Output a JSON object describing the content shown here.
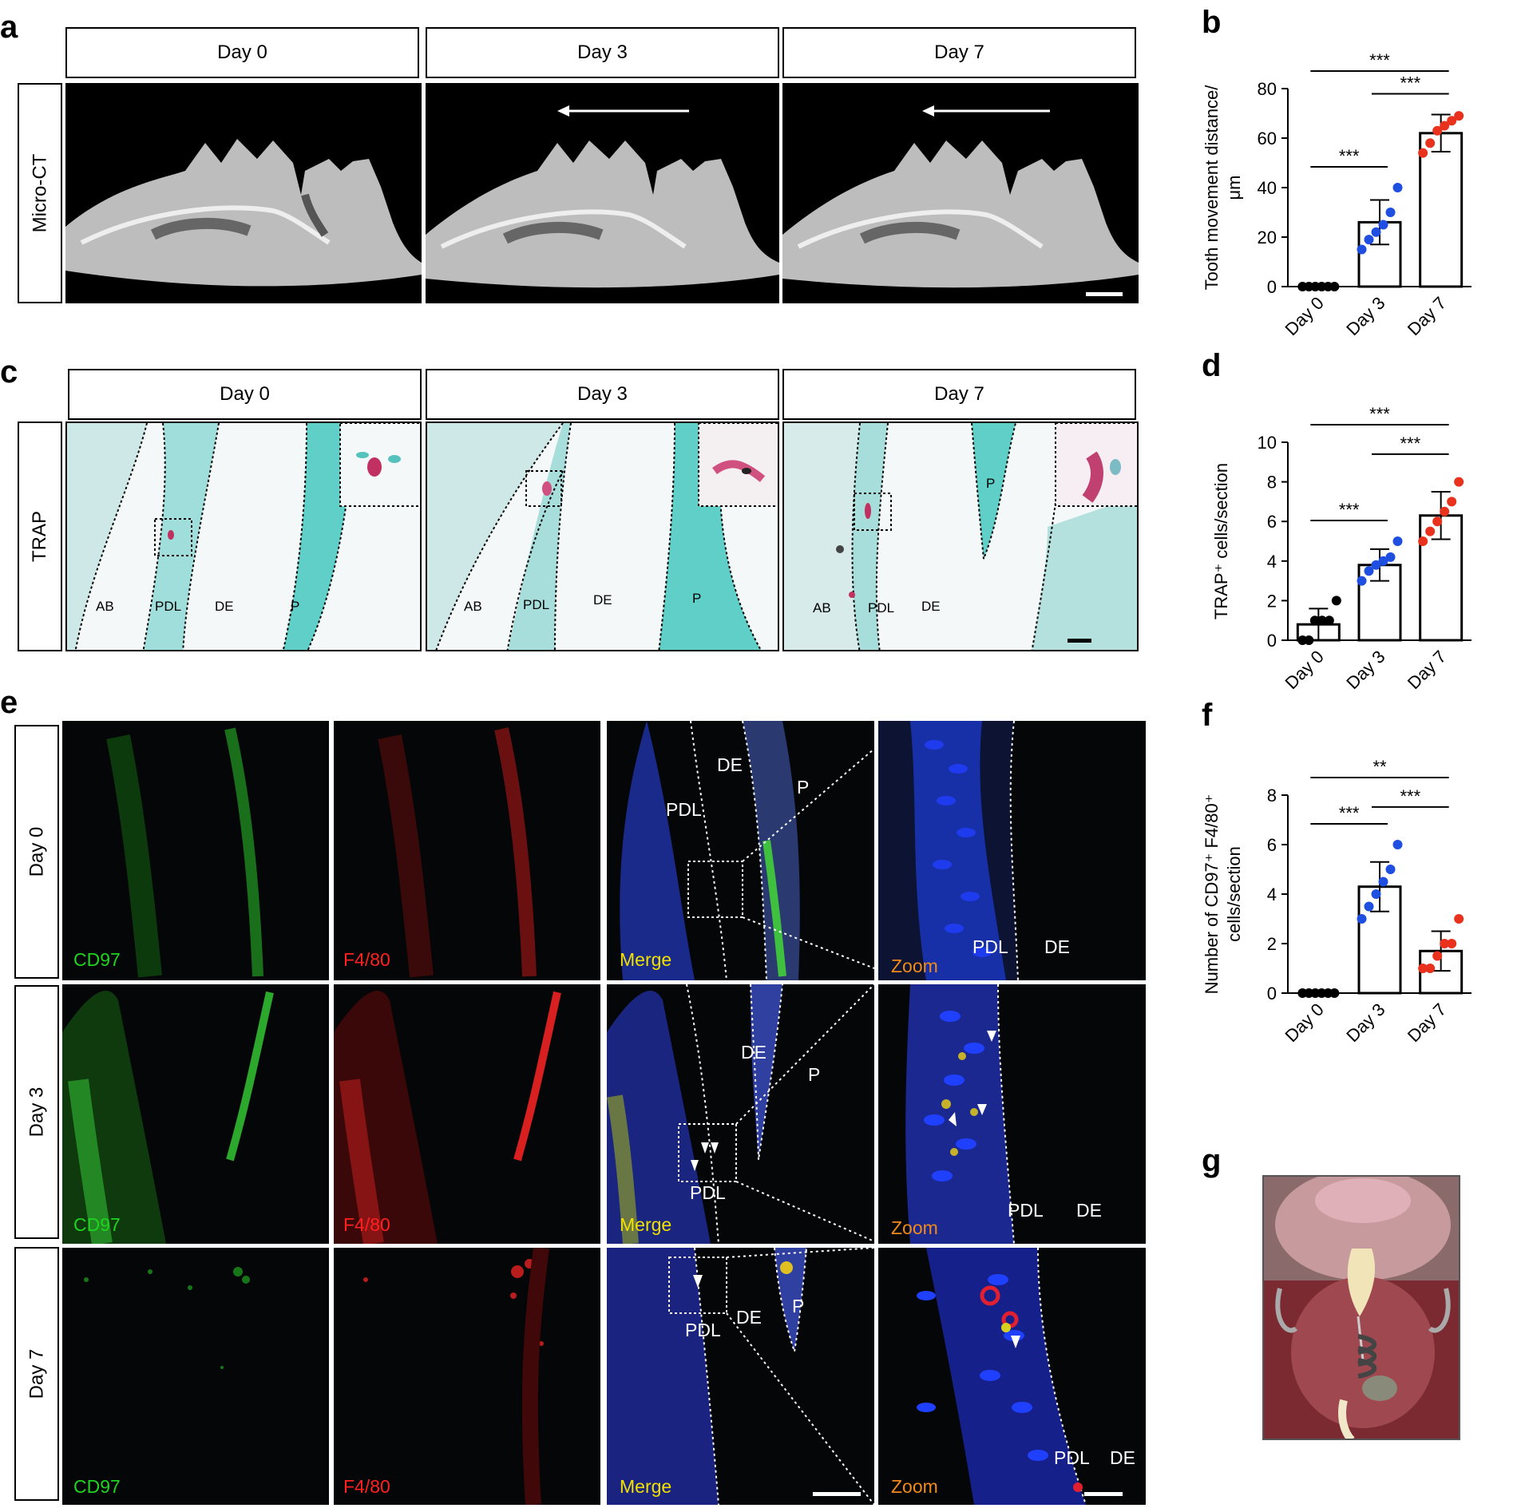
{
  "panels": {
    "a": {
      "letter": "a",
      "row_label": "Micro-CT",
      "columns": [
        "Day 0",
        "Day 3",
        "Day 7"
      ]
    },
    "b": {
      "letter": "b"
    },
    "c": {
      "letter": "c",
      "row_label": "TRAP",
      "columns": [
        "Day 0",
        "Day 3",
        "Day 7"
      ],
      "tissue_labels": {
        "ab": "AB",
        "pdl": "PDL",
        "de": "DE",
        "p": "P"
      }
    },
    "d": {
      "letter": "d"
    },
    "e": {
      "letter": "e",
      "rows": [
        "Day 0",
        "Day 3",
        "Day 7"
      ],
      "channels": {
        "cd97": "CD97",
        "f480": "F4/80",
        "merge": "Merge",
        "zoom": "Zoom"
      },
      "tissue_labels": {
        "de": "DE",
        "pdl": "PDL",
        "p": "P"
      }
    },
    "f": {
      "letter": "f"
    },
    "g": {
      "letter": "g"
    }
  },
  "colors": {
    "day0": "#000000",
    "day3": "#1f4fe0",
    "day7": "#e8321e",
    "cd97": "#1fd41f",
    "f480": "#ff2020",
    "merge": "#f2e000",
    "zoom": "#f08a1a"
  },
  "chart_data": [
    {
      "id": "b",
      "type": "bar",
      "categories": [
        "Day 0",
        "Day 3",
        "Day 7"
      ],
      "values": [
        0,
        26,
        62
      ],
      "errors": [
        0,
        9,
        7.5
      ],
      "points": [
        [
          0,
          0,
          0,
          0,
          0,
          0
        ],
        [
          15,
          19,
          22,
          25,
          30,
          40
        ],
        [
          54,
          58,
          63,
          65,
          67,
          69
        ]
      ],
      "ylabel_lines": [
        "Tooth movement distance/",
        "μm"
      ],
      "ylim": [
        0,
        80
      ],
      "yticks": [
        0,
        20,
        40,
        60,
        80
      ],
      "significance": [
        {
          "from": 0,
          "to": 2,
          "label": "***"
        },
        {
          "from": 1,
          "to": 2,
          "label": "***"
        },
        {
          "from": 0,
          "to": 1,
          "label": "***"
        }
      ]
    },
    {
      "id": "d",
      "type": "bar",
      "categories": [
        "Day 0",
        "Day 3",
        "Day 7"
      ],
      "values": [
        0.8,
        3.8,
        6.3
      ],
      "errors": [
        0.8,
        0.8,
        1.2
      ],
      "points": [
        [
          0,
          0,
          1,
          1,
          1,
          2
        ],
        [
          3,
          3.5,
          3.8,
          4,
          4.2,
          5
        ],
        [
          5,
          5.5,
          6,
          6.5,
          7,
          8
        ]
      ],
      "ylabel_lines": [
        "TRAP⁺ cells/section"
      ],
      "ylim": [
        0,
        10
      ],
      "yticks": [
        0,
        2,
        4,
        6,
        8,
        10
      ],
      "significance": [
        {
          "from": 0,
          "to": 2,
          "label": "***"
        },
        {
          "from": 1,
          "to": 2,
          "label": "***"
        },
        {
          "from": 0,
          "to": 1,
          "label": "***"
        }
      ]
    },
    {
      "id": "f",
      "type": "bar",
      "categories": [
        "Day 0",
        "Day 3",
        "Day 7"
      ],
      "values": [
        0,
        4.3,
        1.7
      ],
      "errors": [
        0,
        1.0,
        0.8
      ],
      "points": [
        [
          0,
          0,
          0,
          0,
          0,
          0
        ],
        [
          3,
          3.5,
          4,
          4.5,
          5,
          6
        ],
        [
          1,
          1,
          1.5,
          2,
          2,
          3
        ]
      ],
      "ylabel_lines": [
        "Number of CD97⁺ F4/80⁺",
        "cells/section"
      ],
      "ylim": [
        0,
        8
      ],
      "yticks": [
        0,
        2,
        4,
        6,
        8
      ],
      "significance": [
        {
          "from": 0,
          "to": 2,
          "label": "**"
        },
        {
          "from": 0,
          "to": 1,
          "label": "***"
        },
        {
          "from": 1,
          "to": 2,
          "label": "***"
        }
      ]
    }
  ]
}
